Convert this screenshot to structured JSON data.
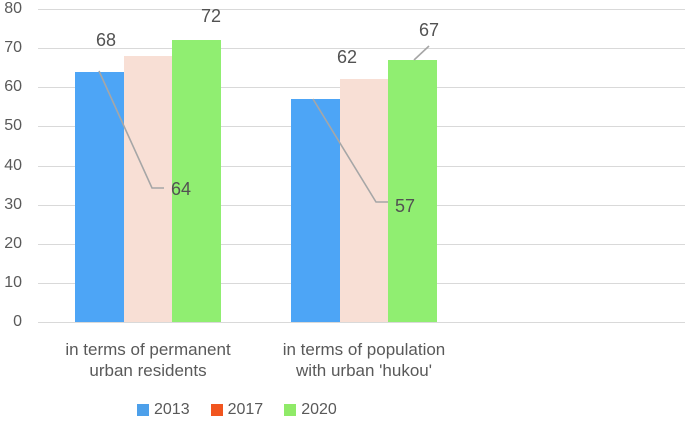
{
  "chart_data": {
    "type": "bar",
    "title": "",
    "xlabel": "",
    "ylabel": "",
    "categories": [
      "in terms of permanent\nurban residents",
      "in terms of population\nwith urban 'hukou'"
    ],
    "series": [
      {
        "name": "2013",
        "values": [
          64,
          57
        ],
        "bar_color": "#4da5f6",
        "legend_color": "#4da0ea"
      },
      {
        "name": "2017",
        "values": [
          68,
          62
        ],
        "bar_color": "#f8dfd5",
        "legend_color": "#f1551f"
      },
      {
        "name": "2020",
        "values": [
          72,
          67
        ],
        "bar_color": "#90ee71",
        "legend_color": "#8fea68"
      }
    ],
    "ylim": [
      0,
      80
    ],
    "yticks": [
      0,
      10,
      20,
      30,
      40,
      50,
      60,
      70,
      80
    ],
    "grid": true,
    "legend_position": "bottom",
    "data_labels_shown": true,
    "style": {
      "background": "#ffffff",
      "gridline_color": "#d9d9d9",
      "tick_text_color": "#595959",
      "category_text_color": "#595959",
      "data_label_color": "#525252",
      "legend_text_color": "#595959",
      "callout_line_color": "#a6a6a6"
    }
  }
}
